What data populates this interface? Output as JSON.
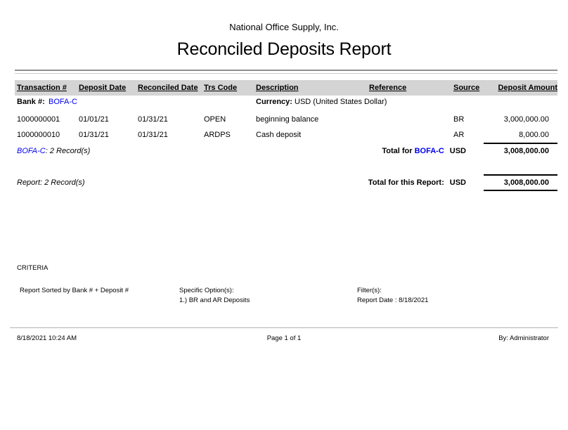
{
  "header": {
    "company": "National Office Supply, Inc.",
    "title": "Reconciled Deposits Report"
  },
  "table": {
    "columns": [
      "Transaction #",
      "Deposit Date",
      "Reconciled Date",
      "Trs Code",
      "Description",
      "Reference",
      "Source",
      "Deposit Amount"
    ],
    "bank_group": {
      "bank_label": "Bank #:",
      "bank_value": "BOFA-C",
      "currency_label": "Currency:",
      "currency_value": "USD (United States Dollar)"
    },
    "rows": [
      {
        "transaction": "1000000001",
        "deposit_date": "01/01/21",
        "reconciled_date": "01/31/21",
        "trs_code": "OPEN",
        "description": "beginning balance",
        "reference": "",
        "source": "BR",
        "amount": "3,000,000.00"
      },
      {
        "transaction": "1000000010",
        "deposit_date": "01/31/21",
        "reconciled_date": "01/31/21",
        "trs_code": "ARDPS",
        "description": "Cash deposit",
        "reference": "",
        "source": "AR",
        "amount": "8,000.00"
      }
    ],
    "bank_total": {
      "records_bank": "BOFA-C",
      "records_text": ": 2 Record(s)",
      "label_prefix": "Total for ",
      "label_bank": "BOFA-C",
      "label_currency": "USD",
      "amount": "3,008,000.00"
    },
    "report_total": {
      "records": "Report: 2 Record(s)",
      "label": "Total for this Report:",
      "currency": "USD",
      "amount": "3,008,000.00"
    }
  },
  "criteria": {
    "heading": "CRITERIA",
    "sorted_by": "Report Sorted by Bank # + Deposit #",
    "specific_options_label": "Specific Option(s):",
    "specific_options_value": "1.) BR and AR Deposits",
    "filters_label": "Filter(s):",
    "filters_value": "Report Date : 8/18/2021"
  },
  "footer": {
    "datetime": "8/18/2021 10:24 AM",
    "page": "Page 1 of 1",
    "by": "By: Administrator"
  },
  "colors": {
    "link_blue": "#0000ee",
    "header_bg": "#d4d4d4"
  }
}
